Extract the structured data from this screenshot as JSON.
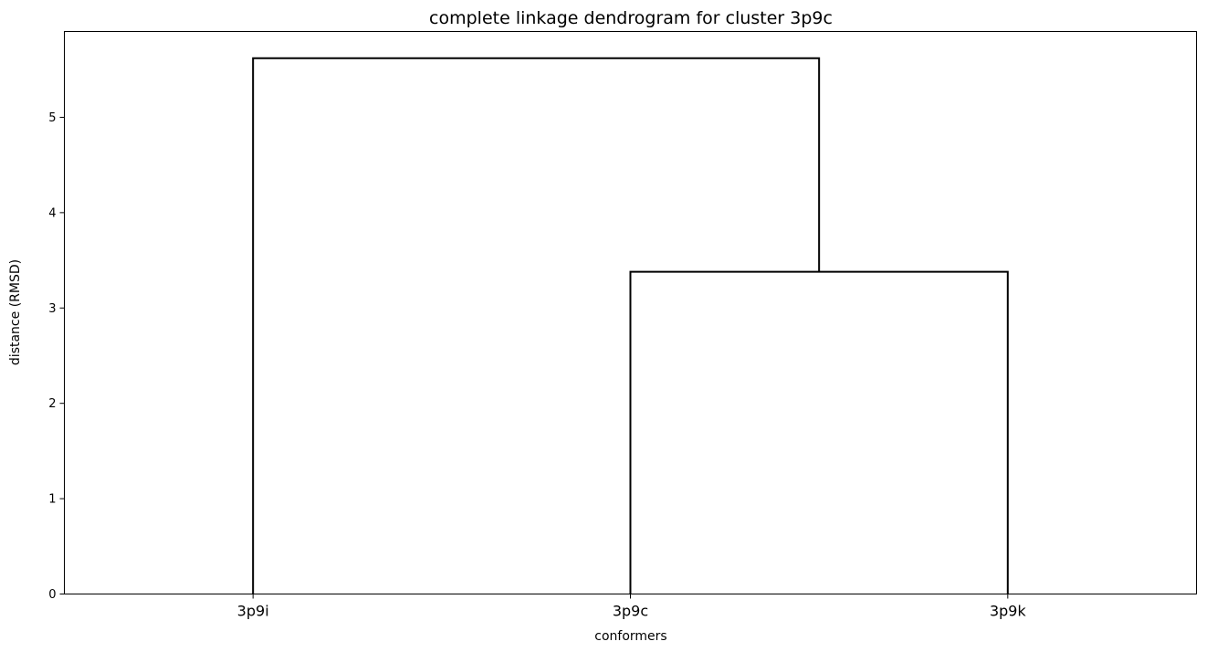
{
  "chart_data": {
    "type": "dendrogram",
    "title": "complete linkage dendrogram for cluster 3p9c",
    "xlabel": "conformers",
    "ylabel": "distance (RMSD)",
    "leaves": [
      "3p9i",
      "3p9c",
      "3p9k"
    ],
    "merges": [
      {
        "left": "3p9c",
        "right": "3p9k",
        "distance": 3.38
      },
      {
        "left": "3p9i",
        "right": "3p9c+3p9k",
        "distance": 5.62
      }
    ],
    "ylim": [
      0,
      5.9
    ],
    "yticks": [
      0,
      1,
      2,
      3,
      4,
      5
    ],
    "grid": false,
    "line_color": "#000000"
  }
}
